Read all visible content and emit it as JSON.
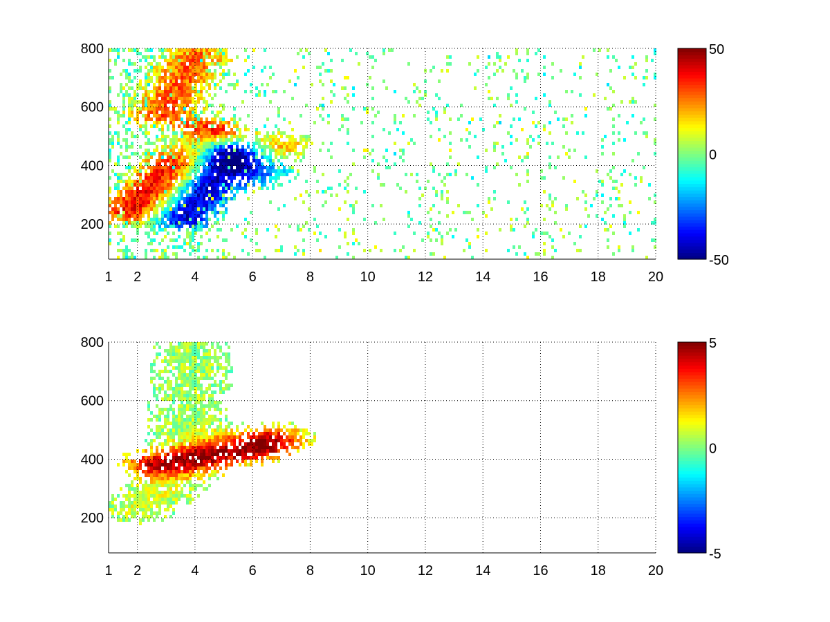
{
  "chart_data": [
    {
      "type": "heatmap",
      "title": "",
      "xlabel": "",
      "ylabel": "",
      "xlim": [
        1,
        20
      ],
      "ylim": [
        80,
        800
      ],
      "xticks": [
        "1",
        "2",
        "4",
        "6",
        "8",
        "10",
        "12",
        "14",
        "16",
        "18",
        "20"
      ],
      "xtick_values": [
        1,
        2,
        4,
        6,
        8,
        10,
        12,
        14,
        16,
        18,
        20
      ],
      "yticks": [
        "200",
        "400",
        "600",
        "800"
      ],
      "ytick_values": [
        200,
        400,
        600,
        800
      ],
      "grid": true,
      "colormap": "jet",
      "clim": [
        -50,
        50
      ],
      "colorbar_ticks": [
        "-50",
        "0",
        "50"
      ],
      "colorbar_tick_values": [
        -50,
        0,
        50
      ],
      "features": [
        {
          "shape": "ridge",
          "from": [
            1.8,
            250
          ],
          "to": [
            4.5,
            520
          ],
          "value": 42
        },
        {
          "shape": "ridge",
          "from": [
            2.8,
            580
          ],
          "to": [
            4.0,
            780
          ],
          "value": 28
        },
        {
          "shape": "ridge",
          "from": [
            3.5,
            230
          ],
          "to": [
            5.2,
            450
          ],
          "value": -46
        },
        {
          "shape": "ridge",
          "from": [
            4.0,
            480
          ],
          "to": [
            6.2,
            380
          ],
          "value": -20
        },
        {
          "shape": "blob",
          "at": [
            6.8,
            470
          ],
          "value": 22
        }
      ]
    },
    {
      "type": "heatmap",
      "title": "",
      "xlabel": "",
      "ylabel": "",
      "xlim": [
        1,
        20
      ],
      "ylim": [
        80,
        800
      ],
      "xticks": [
        "1",
        "2",
        "4",
        "6",
        "8",
        "10",
        "12",
        "14",
        "16",
        "18",
        "20"
      ],
      "xtick_values": [
        1,
        2,
        4,
        6,
        8,
        10,
        12,
        14,
        16,
        18,
        20
      ],
      "yticks": [
        "200",
        "400",
        "600",
        "800"
      ],
      "ytick_values": [
        200,
        400,
        600,
        800
      ],
      "grid": true,
      "colormap": "jet",
      "clim": [
        -5,
        5
      ],
      "colorbar_ticks": [
        "-5",
        "0",
        "5"
      ],
      "colorbar_tick_values": [
        -5,
        0,
        5
      ],
      "features": [
        {
          "shape": "ridge",
          "from": [
            2.0,
            240
          ],
          "to": [
            5.0,
            480
          ],
          "value": 0.8
        },
        {
          "shape": "ridge",
          "from": [
            3.6,
            380
          ],
          "to": [
            3.9,
            780
          ],
          "value": 0.3
        },
        {
          "shape": "ridge",
          "from": [
            2.6,
            390
          ],
          "to": [
            6.0,
            440
          ],
          "value": 4
        },
        {
          "shape": "blob",
          "at": [
            6.8,
            480
          ],
          "value": 2.8
        }
      ]
    }
  ]
}
